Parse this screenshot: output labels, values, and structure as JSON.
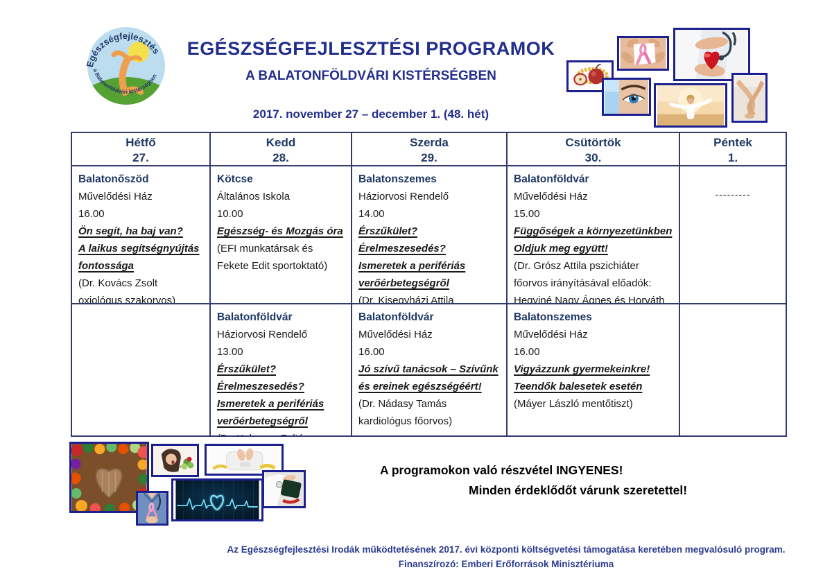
{
  "theme": {
    "navy-bright": "#222E8C",
    "navy-dark": "#1F3864",
    "navy-funding": "#2B3A8F",
    "photo-border": "#1C1F8E",
    "table-border": "#333A6E",
    "ink": "#1A1A1A"
  },
  "logo": {
    "arc_top_text": "Egészségfejlesztés",
    "arc_bottom_text": "a Balatonföldvári kistérségben"
  },
  "header": {
    "title": "EGÉSZSÉGFEJLESZTÉSI PROGRAMOK",
    "subtitle": "A BALATONFÖLDVÁRI KISTÉRSÉGBEN",
    "date_range": "2017. november 27 – december 1. (48. hét)"
  },
  "photos": {
    "top_right": [
      "apple-and-measuring-tape",
      "hands-holding-pink-ribbon",
      "doctor-holding-red-heart",
      "blue-eye-closeup",
      "woman-open-arms-outdoors",
      "bare-legs"
    ],
    "bottom_left": [
      "vegetable-heart-on-wood",
      "woman-eating-salad",
      "feet-on-scale-with-tape",
      "nurse-with-pink-ribbon",
      "ecg-heartbeat-heart",
      "doctor-with-blood-pressure-cuff"
    ]
  },
  "table": {
    "days": [
      {
        "name": "Hétfő",
        "date": "27."
      },
      {
        "name": "Kedd",
        "date": "28."
      },
      {
        "name": "Szerda",
        "date": "29."
      },
      {
        "name": "Csütörtök",
        "date": "30."
      },
      {
        "name": "Péntek",
        "date": "1."
      }
    ],
    "rows": [
      {
        "cells": [
          {
            "location": "Balatonőszöd",
            "venue": "Művelődési Ház",
            "time": "16.00",
            "title_lines": [
              "Ön segít, ha baj van?",
              "A laikus segítségnyújtás",
              "fontossága"
            ],
            "speaker": "(Dr. Kovács Zsolt oxiológus szakorvos)"
          },
          {
            "location": "Kötcse",
            "venue": "Általános Iskola",
            "time": "10.00",
            "title_lines": [
              "Egészség- és Mozgás óra"
            ],
            "speaker": "(EFI munkatársak és Fekete Edit sportoktató)"
          },
          {
            "location": "Balatonszemes",
            "venue": "Háziorvosi Rendelő",
            "time": "14.00",
            "title_lines": [
              "Érszűkület? Érelmeszesedés?",
              "Ismeretek a perifériás",
              "verőérbetegségről"
            ],
            "speaker": "(Dr. Kisegyházi Attila háziorvos)"
          },
          {
            "location": "Balatonföldvár",
            "venue": "Művelődési Ház",
            "time": "15.00",
            "title_lines": [
              "Függőségek a környezetünkben",
              "Oldjuk meg együtt!"
            ],
            "speaker": "(Dr. Grósz Attila pszichiáter főorvos irányításával előadók: Hegyiné Nagy Ágnes és Horváth Lajos közösségi gondozó)"
          },
          {
            "dashes": "---------"
          }
        ]
      },
      {
        "cells": [
          {},
          {
            "location": "Balatonföldvár",
            "venue": "Háziorvosi Rendelő",
            "time": "13.00",
            "title_lines": [
              "Érszűkület?",
              "Érelmeszesedés?",
              "Ismeretek a perifériás",
              "verőérbetegségről"
            ],
            "speaker": "(Dr. Kelemen Zoltán háziorvos)"
          },
          {
            "location": "Balatonföldvár",
            "venue": "Művelődési Ház",
            "time": "16.00",
            "title_lines": [
              "Jó szívű tanácsok – Szívűnk",
              "és ereinek egészségéért!"
            ],
            "speaker": "(Dr. Nádasy Tamás kardiológus főorvos)"
          },
          {
            "location": "Balatonszemes",
            "venue": "Művelődési Ház",
            "time": "16.00",
            "title_lines": [
              "Vigyázzunk gyermekeinkre!",
              "Teendők balesetek esetén"
            ],
            "speaker": "(Máyer László mentőtiszt)"
          },
          {}
        ]
      }
    ]
  },
  "notes": {
    "free_line1": "A programokon való részvétel INGYENES!",
    "free_line2": "Minden érdeklődőt várunk szeretettel!",
    "funding_line1": "Az Egészségfejlesztési Irodák működtetésének 2017. évi központi költségvetési támogatása keretében megvalósuló program.",
    "funding_line2": "Finanszírozó: Emberi Erőforrások Minisztériuma"
  }
}
